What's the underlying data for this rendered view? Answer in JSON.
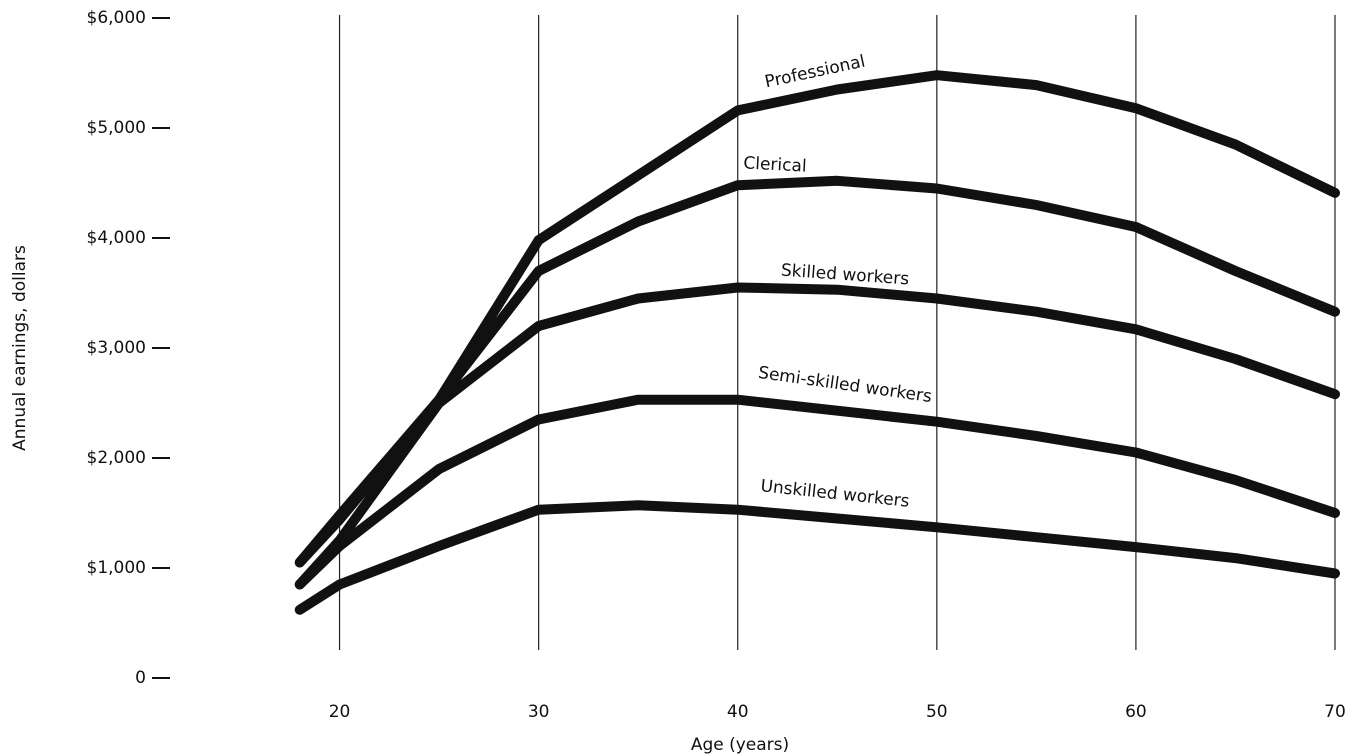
{
  "chart_data": {
    "type": "line",
    "x_label": "Age (years)",
    "y_label": "Annual earnings, dollars",
    "x": [
      18,
      20,
      25,
      30,
      35,
      40,
      45,
      50,
      55,
      60,
      65,
      70
    ],
    "series": [
      {
        "name": "Professional",
        "color": "#111111",
        "values": [
          1050,
          1480,
          2530,
          3980,
          4570,
          5160,
          5350,
          5480,
          5390,
          5180,
          4850,
          4410
        ]
      },
      {
        "name": "Clerical",
        "color": "#111111",
        "values": [
          1050,
          1440,
          2530,
          3700,
          4150,
          4480,
          4520,
          4450,
          4300,
          4100,
          3700,
          3330
        ]
      },
      {
        "name": "Skilled workers",
        "color": "#111111",
        "values": [
          850,
          1250,
          2500,
          3200,
          3450,
          3550,
          3530,
          3450,
          3330,
          3170,
          2900,
          2580
        ]
      },
      {
        "name": "Semi-skilled workers",
        "color": "#111111",
        "values": [
          850,
          1200,
          1900,
          2350,
          2530,
          2530,
          2430,
          2330,
          2200,
          2050,
          1800,
          1500
        ]
      },
      {
        "name": "Unskilled workers",
        "color": "#111111",
        "values": [
          620,
          850,
          1200,
          1530,
          1570,
          1530,
          1450,
          1370,
          1280,
          1190,
          1090,
          950
        ]
      }
    ],
    "xlim": [
      15,
      70
    ],
    "xticks": [
      20,
      30,
      40,
      50,
      60,
      70
    ],
    "ylim": [
      0,
      6000
    ],
    "yticks": [
      0,
      {
        "value": 1000,
        "label": "$1,000"
      },
      {
        "value": 2000,
        "label": "$2,000"
      },
      {
        "value": 3000,
        "label": "$3,000"
      },
      {
        "value": 4000,
        "label": "$4,000"
      },
      {
        "value": 5000,
        "label": "$5,000"
      },
      {
        "value": 6000,
        "label": "$6,000"
      }
    ],
    "grid": true
  }
}
